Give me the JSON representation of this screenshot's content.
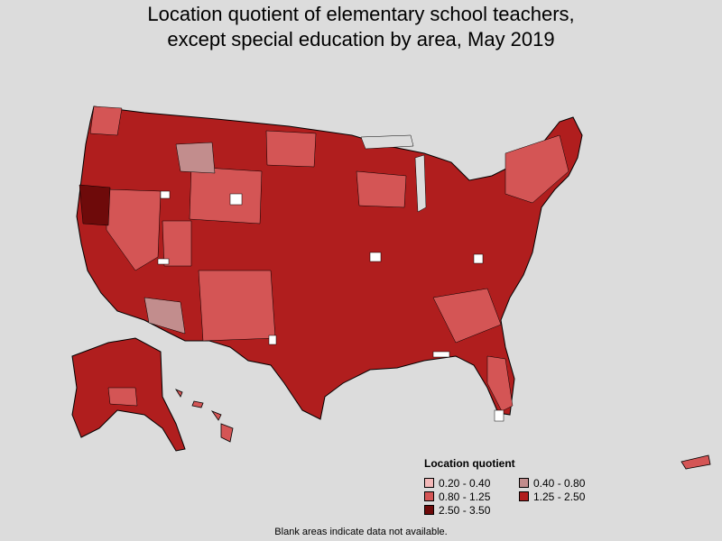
{
  "title_line1": "Location quotient of elementary school teachers,",
  "title_line2": "except special education by area, May 2019",
  "legend": {
    "title": "Location quotient",
    "items": [
      {
        "label": "0.20 - 0.40",
        "color": "#f3b8b8"
      },
      {
        "label": "0.40 - 0.80",
        "color": "#c28d8d"
      },
      {
        "label": "0.80 - 1.25",
        "color": "#d45555"
      },
      {
        "label": "1.25 - 2.50",
        "color": "#b01e1e"
      },
      {
        "label": "2.50 - 3.50",
        "color": "#6e0a0a"
      }
    ]
  },
  "footnote": "Blank areas indicate data not available."
}
